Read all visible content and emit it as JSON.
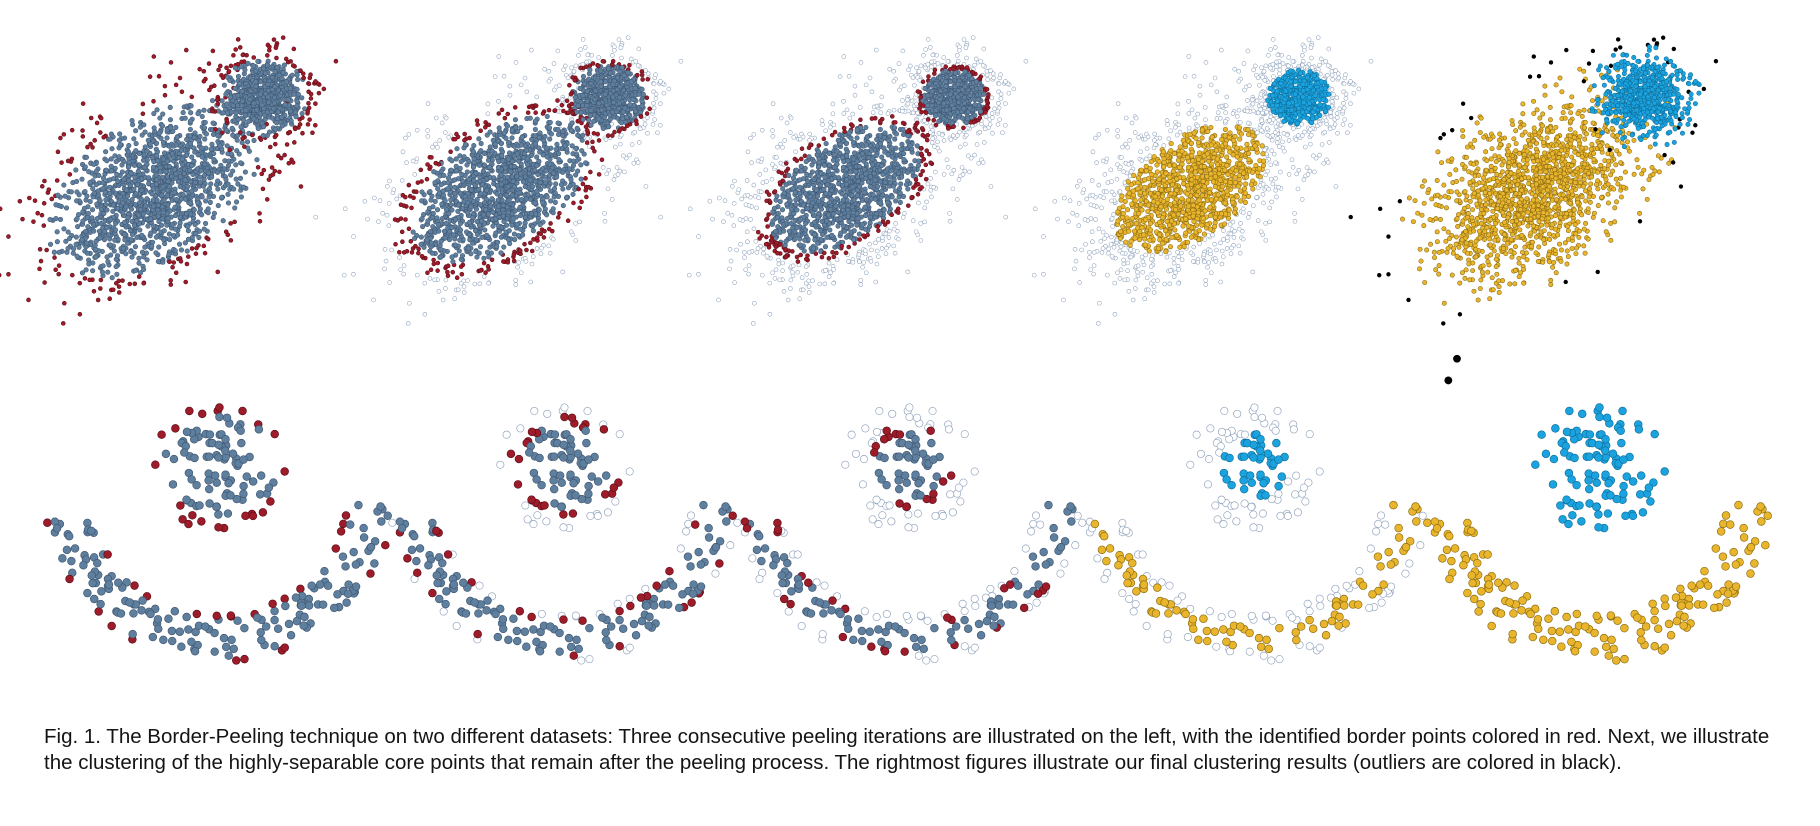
{
  "caption": {
    "text": "Fig. 1. The Border-Peeling technique on two different datasets: Three consecutive peeling iterations are illustrated on the left, with the identified border points colored in red. Next, we illustrate the clustering of the highly-separable core points that remain after the peeling process. The rightmost figures illustrate our final clustering results (outliers are colored in black)."
  },
  "colors": {
    "core": "#5f7f9f",
    "border": "#9e1b2a",
    "peeled_fill": "#ffffff",
    "peeled_stroke": "#8fa2bc",
    "cluster_yellow": "#e8b52c",
    "cluster_blue": "#1ba3e0",
    "outlier": "#000000"
  },
  "panels": {
    "rows": [
      {
        "dataset": "gaussian-blobs",
        "stages": [
          "peeling-iteration-1",
          "peeling-iteration-2",
          "peeling-iteration-3",
          "core-clustering",
          "final-clustering"
        ]
      },
      {
        "dataset": "moons",
        "stages": [
          "peeling-iteration-1",
          "peeling-iteration-2",
          "peeling-iteration-3",
          "core-clustering",
          "final-clustering"
        ]
      }
    ]
  }
}
